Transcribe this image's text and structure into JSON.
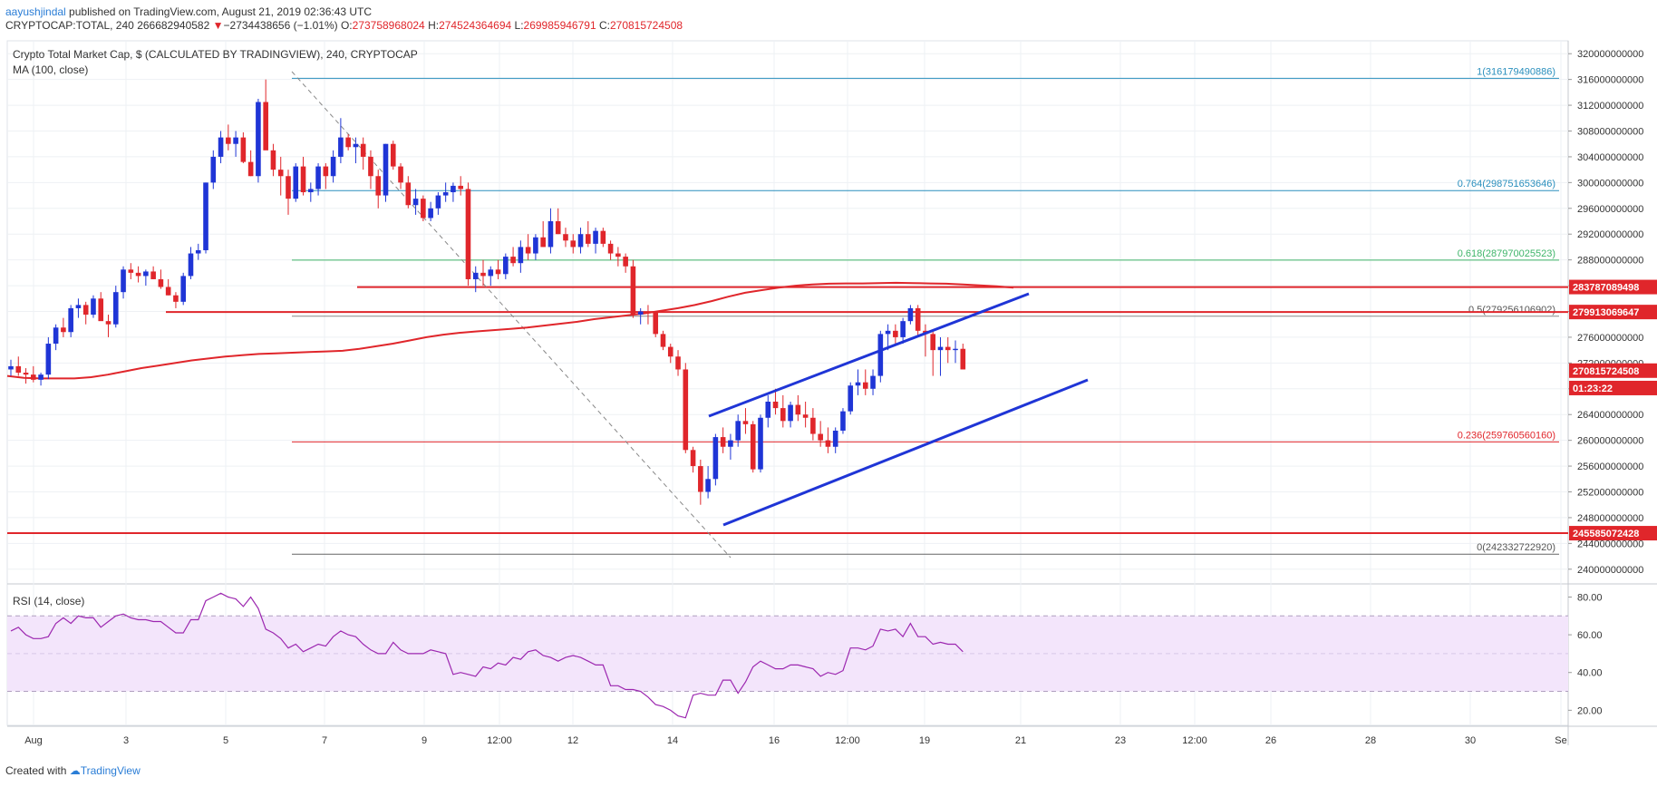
{
  "header": {
    "author": "aayushjindal",
    "published_text": " published on TradingView.com, August 21, 2019 02:36:43 UTC",
    "symbol": "CRYPTOCAP:TOTAL, 240",
    "last": "266682940582",
    "change_arrow": "▼",
    "change": "−2734438656 (−1.01%)",
    "o_label": "O:",
    "o_value": "273758968024",
    "h_label": "H:",
    "h_value": "274524364694",
    "l_label": "L:",
    "l_value": "269985946791",
    "c_label": "C:",
    "c_value": "270815724508"
  },
  "footer": {
    "created_with": "Created with",
    "brand": "TradingView"
  },
  "colors": {
    "up": "#1f35d6",
    "down": "#e0262b",
    "ma": "#e0262b",
    "rsi": "#9c27b0",
    "rsi_band": "#f3e5fb",
    "channel": "#1f35d6",
    "fib": "#2a8fbd"
  },
  "chart_data": [
    {
      "type": "candlestick",
      "title": "Crypto Total Market Cap, $ (CALCULATED BY TRADINGVIEW), 240, CRYPTOCAP",
      "indicator_label": "MA (100, close)",
      "ylim": [
        238000000000,
        322000000000
      ],
      "y_ticks": [
        "240000000000",
        "244000000000",
        "248000000000",
        "252000000000",
        "256000000000",
        "260000000000",
        "264000000000",
        "268000000000",
        "272000000000",
        "276000000000",
        "280000000000",
        "284000000000",
        "288000000000",
        "292000000000",
        "296000000000",
        "300000000000",
        "304000000000",
        "308000000000",
        "312000000000",
        "316000000000",
        "320000000000"
      ],
      "x_ticks": [
        "Aug",
        "3",
        "5",
        "7",
        "9",
        "12:00",
        "12",
        "14",
        "16",
        "12:00",
        "19",
        "21",
        "23",
        "12:00",
        "26",
        "28",
        "30",
        "Se"
      ],
      "candles": [
        [
          271,
          272.5,
          270,
          271.5
        ],
        [
          271.5,
          273,
          270,
          270.5
        ],
        [
          270.5,
          271.2,
          268.8,
          270.2
        ],
        [
          270.2,
          271.5,
          269,
          269.4
        ],
        [
          269.4,
          270.5,
          268.5,
          270.2
        ],
        [
          270.2,
          276,
          269.5,
          275
        ],
        [
          275,
          278,
          274,
          277.5
        ],
        [
          277.5,
          279,
          276,
          276.8
        ],
        [
          276.8,
          281,
          276,
          280.5
        ],
        [
          280.5,
          282,
          279,
          281
        ],
        [
          281,
          281.5,
          278,
          279.5
        ],
        [
          279.5,
          282.5,
          279,
          282
        ],
        [
          282,
          283,
          280,
          278.5
        ],
        [
          278.5,
          279.5,
          276,
          278
        ],
        [
          278,
          284,
          277.5,
          283
        ],
        [
          283,
          287,
          282,
          286.5
        ],
        [
          286.5,
          287.5,
          285,
          286
        ],
        [
          286,
          287,
          284.5,
          285.5
        ],
        [
          285.5,
          286.5,
          284,
          286.2
        ],
        [
          286.2,
          287,
          285,
          285
        ],
        [
          285,
          286.5,
          283.5,
          283.8
        ],
        [
          283.8,
          285,
          282.5,
          282.5
        ],
        [
          282.5,
          283,
          280.5,
          281.5
        ],
        [
          281.5,
          286,
          281,
          285.5
        ],
        [
          285.5,
          290,
          285,
          289
        ],
        [
          289,
          290.5,
          288,
          289.5
        ],
        [
          289.5,
          300,
          289,
          300
        ],
        [
          300,
          305,
          299,
          304
        ],
        [
          304,
          308,
          303,
          307
        ],
        [
          307,
          309,
          305,
          306
        ],
        [
          306,
          308,
          304,
          307
        ],
        [
          307,
          307.8,
          303,
          303.2
        ],
        [
          303.2,
          305,
          301,
          301
        ],
        [
          301,
          313,
          300,
          312.5
        ],
        [
          312.5,
          316,
          308,
          305
        ],
        [
          305,
          306,
          301,
          302
        ],
        [
          302,
          304,
          298,
          301
        ],
        [
          301,
          302,
          295,
          297.5
        ],
        [
          297.5,
          303,
          297,
          302.5
        ],
        [
          302.5,
          304,
          298,
          298.5
        ],
        [
          298.5,
          300,
          297,
          299
        ],
        [
          299,
          303,
          298,
          302.5
        ],
        [
          302.5,
          303,
          299,
          301
        ],
        [
          301,
          305,
          300,
          304
        ],
        [
          304,
          310,
          303,
          307
        ],
        [
          307,
          307.5,
          305,
          305.5
        ],
        [
          305.5,
          307,
          303,
          306
        ],
        [
          306,
          307,
          302,
          304
        ],
        [
          304,
          305,
          299,
          301
        ],
        [
          301,
          302,
          296,
          298
        ],
        [
          298,
          306,
          297,
          306
        ],
        [
          306,
          306.5,
          302,
          302.5
        ],
        [
          302.5,
          303,
          299,
          300
        ],
        [
          300,
          301,
          296,
          296.5
        ],
        [
          296.5,
          299,
          295,
          297.5
        ],
        [
          297.5,
          298,
          294,
          294.5
        ],
        [
          294.5,
          297,
          294,
          296
        ],
        [
          296,
          298.5,
          295,
          298
        ],
        [
          298,
          300,
          297,
          298.5
        ],
        [
          298.5,
          300,
          297,
          299.5
        ],
        [
          299.5,
          301,
          298,
          299
        ],
        [
          299,
          300,
          284,
          285
        ],
        [
          285,
          287,
          283,
          286
        ],
        [
          286,
          288,
          284,
          285.5
        ],
        [
          285.5,
          287,
          284,
          286.5
        ],
        [
          286.5,
          288,
          285,
          285.8
        ],
        [
          285.8,
          289,
          285,
          288.5
        ],
        [
          288.5,
          290,
          287,
          287.5
        ],
        [
          287.5,
          291,
          286,
          290
        ],
        [
          290,
          292,
          288,
          289
        ],
        [
          289,
          292,
          288,
          291.5
        ],
        [
          291.5,
          294,
          290,
          290
        ],
        [
          290,
          296,
          289,
          294
        ],
        [
          294,
          296,
          292,
          292
        ],
        [
          292,
          293,
          290,
          291
        ],
        [
          291,
          292,
          289,
          290
        ],
        [
          290,
          293,
          289,
          292
        ],
        [
          292,
          294,
          290,
          290.5
        ],
        [
          290.5,
          293,
          289,
          292.5
        ],
        [
          292.5,
          293,
          290,
          290.5
        ],
        [
          290.5,
          291,
          288,
          289
        ],
        [
          289,
          290,
          287,
          288.5
        ],
        [
          288.5,
          289,
          286,
          287
        ],
        [
          287,
          288,
          279,
          279.5
        ],
        [
          279.5,
          280.5,
          278,
          280
        ],
        [
          280,
          281,
          278,
          279.8
        ],
        [
          279.8,
          280,
          276,
          276.5
        ],
        [
          276.5,
          277,
          274,
          274.5
        ],
        [
          274.5,
          275,
          272,
          273
        ],
        [
          273,
          274,
          270,
          271
        ],
        [
          271,
          272,
          258,
          258.5
        ],
        [
          258.5,
          259,
          255,
          256
        ],
        [
          256,
          257,
          250,
          252
        ],
        [
          252,
          256,
          251,
          254
        ],
        [
          254,
          261,
          253,
          260.5
        ],
        [
          260.5,
          262,
          258,
          259
        ],
        [
          259,
          261,
          257,
          260
        ],
        [
          260,
          264,
          259,
          263
        ],
        [
          263,
          265,
          261,
          262.5
        ],
        [
          262.5,
          263,
          255,
          255.5
        ],
        [
          255.5,
          264,
          255,
          263.5
        ],
        [
          263.5,
          267,
          262,
          266
        ],
        [
          266,
          268,
          264,
          265
        ],
        [
          265,
          267,
          262,
          263
        ],
        [
          263,
          266,
          262,
          265.5
        ],
        [
          265.5,
          267,
          263,
          264
        ],
        [
          264,
          266,
          262,
          263.5
        ],
        [
          263.5,
          265,
          260,
          261
        ],
        [
          261,
          263,
          259,
          260
        ],
        [
          260,
          262,
          258,
          259
        ],
        [
          259,
          262,
          258,
          261.5
        ],
        [
          261.5,
          265,
          261,
          264.5
        ],
        [
          264.5,
          269,
          264,
          268.5
        ],
        [
          268.5,
          271,
          267,
          269
        ],
        [
          269,
          271,
          267,
          268
        ],
        [
          268,
          271,
          267,
          270
        ],
        [
          270,
          277,
          269,
          276.5
        ],
        [
          276.5,
          278,
          274,
          277
        ],
        [
          277,
          278,
          275,
          276
        ],
        [
          276,
          279,
          275,
          278.5
        ],
        [
          278.5,
          281,
          278,
          280.5
        ],
        [
          280.5,
          281,
          276,
          277
        ],
        [
          277,
          278,
          273,
          276.5
        ],
        [
          276.5,
          277,
          270,
          274
        ],
        [
          274,
          276,
          270,
          274.5
        ],
        [
          274.5,
          276,
          272,
          274
        ],
        [
          274,
          275.5,
          272,
          274.2
        ],
        [
          274.2,
          275,
          271,
          271
        ]
      ],
      "ma": [
        270,
        269.7,
        269.6,
        269.6,
        269.6,
        269.8,
        270.2,
        270.7,
        271.2,
        271.6,
        272,
        272.4,
        272.7,
        273,
        273.2,
        273.4,
        273.5,
        273.6,
        273.7,
        273.8,
        273.9,
        274.2,
        274.6,
        275,
        275.5,
        276,
        276.4,
        276.7,
        276.9,
        277.1,
        277.3,
        277.5,
        277.8,
        278.1,
        278.4,
        278.8,
        279.1,
        279.4,
        279.7,
        280.1,
        280.5,
        281,
        281.6,
        282.3,
        282.9,
        283.3,
        283.7,
        284,
        284.2,
        284.3,
        284.35,
        284.35,
        284.4,
        284.45,
        284.4,
        284.35,
        284.3,
        284.2,
        284.05,
        283.9,
        283.7
      ],
      "fib_levels": [
        {
          "ratio": "1",
          "value": "316179490886",
          "v": 316.18
        },
        {
          "ratio": "0.764",
          "value": "298751653646",
          "v": 298.75
        },
        {
          "ratio": "0.618",
          "value": "287970025523",
          "v": 287.97
        },
        {
          "ratio": "0.5",
          "value": "279256106902",
          "v": 279.26
        },
        {
          "ratio": "0.236",
          "value": "259760560160",
          "v": 259.76
        },
        {
          "ratio": "0",
          "value": "242332722920",
          "v": 242.33
        }
      ],
      "horizontal_levels": [
        {
          "label": "283787089498",
          "v": 283.79
        },
        {
          "label": "279913069647",
          "v": 279.91
        },
        {
          "label": "245585072428",
          "v": 245.59
        }
      ],
      "current_price_label": "270815724508",
      "countdown_label": "01:23:22"
    },
    {
      "type": "line",
      "title": "RSI (14, close)",
      "ylim": [
        12,
        86
      ],
      "y_ticks": [
        "20.00",
        "40.00",
        "60.00",
        "80.00"
      ],
      "bands": [
        30,
        70
      ],
      "values": [
        62,
        64,
        60,
        58,
        58,
        59,
        66,
        69,
        66,
        70,
        69,
        69,
        64,
        67,
        70,
        71,
        69,
        68,
        68,
        67,
        67,
        64,
        61,
        61,
        68,
        68,
        78,
        80,
        82,
        80,
        79,
        75,
        80,
        74,
        63,
        61,
        58,
        53,
        55,
        51,
        53,
        55,
        54,
        59,
        62,
        60,
        59,
        55,
        52,
        50,
        50,
        56,
        52,
        50,
        50,
        50,
        52,
        51,
        50,
        39,
        40,
        39,
        38,
        43,
        42,
        45,
        44,
        48,
        47,
        51,
        52,
        49,
        48,
        46,
        48,
        49,
        48,
        46,
        44,
        44,
        33,
        33,
        31,
        31,
        30,
        27,
        23,
        22,
        20,
        17,
        16,
        28,
        29,
        28,
        28,
        36,
        36,
        29,
        35,
        43,
        46,
        44,
        42,
        42,
        44,
        44,
        43,
        42,
        38,
        40,
        39,
        41,
        53,
        53,
        52,
        54,
        63,
        62,
        63,
        59,
        66,
        59,
        59,
        55,
        56,
        55,
        55,
        51
      ]
    }
  ]
}
